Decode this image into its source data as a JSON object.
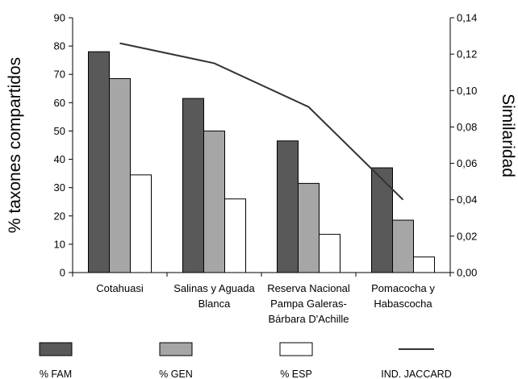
{
  "chart_data": {
    "type": "bar",
    "categories": [
      [
        "Cotahuasi"
      ],
      [
        "Salinas y Aguada",
        "Blanca"
      ],
      [
        "Reserva Nacional",
        "Pampa Galeras-",
        "Bárbara D'Achille"
      ],
      [
        "Pomacocha y",
        "Habascocha"
      ]
    ],
    "ylabel": "% taxones compartidos",
    "y2label": "Similaridad",
    "ylim": [
      0,
      90
    ],
    "y_ticks": [
      "0",
      "10",
      "20",
      "30",
      "40",
      "50",
      "60",
      "70",
      "80",
      "90"
    ],
    "y2lim": [
      0,
      0.14
    ],
    "y2_ticks": [
      "0,00",
      "0,02",
      "0,04",
      "0,06",
      "0,08",
      "0,10",
      "0,12",
      "0,14"
    ],
    "grid": false,
    "legend_position": "bottom",
    "series": [
      {
        "name": "% FAM",
        "axis": "left",
        "kind": "bar",
        "color": "#595959",
        "values": [
          78,
          61.5,
          46.5,
          37
        ]
      },
      {
        "name": "% GEN",
        "axis": "left",
        "kind": "bar",
        "color": "#a6a6a6",
        "values": [
          68.5,
          50,
          31.5,
          18.5
        ]
      },
      {
        "name": "% ESP",
        "axis": "left",
        "kind": "bar",
        "color": "#ffffff",
        "values": [
          34.5,
          26,
          13.5,
          5.5
        ]
      },
      {
        "name": "IND. JACCARD",
        "axis": "right",
        "kind": "line",
        "color": "#333333",
        "values": [
          0.126,
          0.115,
          0.091,
          0.04
        ]
      }
    ]
  }
}
